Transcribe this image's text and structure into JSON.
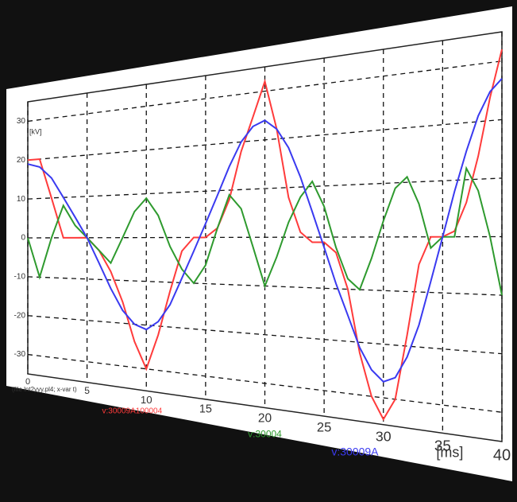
{
  "chart_data": {
    "type": "line",
    "y_label": "[kV]",
    "x_label": "[ms]",
    "note": "(file lnt2yyy.pl4; x-var t)",
    "x": [
      0,
      1,
      2,
      3,
      4,
      5,
      6,
      7,
      8,
      9,
      10,
      11,
      12,
      13,
      14,
      15,
      16,
      17,
      18,
      19,
      20,
      21,
      22,
      23,
      24,
      25,
      26,
      27,
      28,
      29,
      30,
      31,
      32,
      33,
      34,
      35,
      36,
      37,
      38,
      39,
      40
    ],
    "xlim": [
      0,
      40
    ],
    "xticks": [
      0,
      5,
      10,
      15,
      20,
      25,
      30,
      35,
      40
    ],
    "ylim": [
      -35,
      35
    ],
    "yticks": [
      30,
      20,
      10,
      0,
      -10,
      -20,
      -30
    ],
    "grid": true,
    "series": [
      {
        "name": "v:30009A100004",
        "color": "#ff3b3b",
        "values": [
          20,
          20,
          10,
          0,
          0,
          0,
          -3,
          -8,
          -15,
          -24,
          -30,
          -22,
          -12,
          -3,
          0,
          0,
          2,
          8,
          18,
          25,
          32,
          22,
          8,
          1,
          -1,
          -1,
          -3,
          -10,
          -22,
          -30,
          -34,
          -30,
          -18,
          -5,
          0,
          0,
          1,
          6,
          14,
          24,
          32
        ]
      },
      {
        "name": "v:30004",
        "color": "#2e9a2e",
        "values": [
          0,
          -10,
          0,
          8,
          3,
          0,
          -3,
          -6,
          0,
          6,
          9,
          5,
          -2,
          -7,
          -10,
          -6,
          2,
          9,
          6,
          -2,
          -10,
          -4,
          3,
          8,
          11,
          6,
          -2,
          -8,
          -10,
          -4,
          3,
          9,
          11,
          6,
          -2,
          0,
          0,
          12,
          8,
          0,
          -10
        ]
      },
      {
        "name": "v:30009A",
        "color": "#3a3af0",
        "values": [
          19,
          18,
          15,
          10,
          5,
          0,
          -6,
          -12,
          -17,
          -20,
          -21,
          -19,
          -15,
          -9,
          -3,
          3,
          9,
          15,
          20,
          23,
          24,
          22,
          18,
          12,
          5,
          -2,
          -9,
          -15,
          -21,
          -25,
          -27,
          -26,
          -22,
          -16,
          -8,
          0,
          8,
          15,
          21,
          25,
          27
        ]
      }
    ]
  }
}
